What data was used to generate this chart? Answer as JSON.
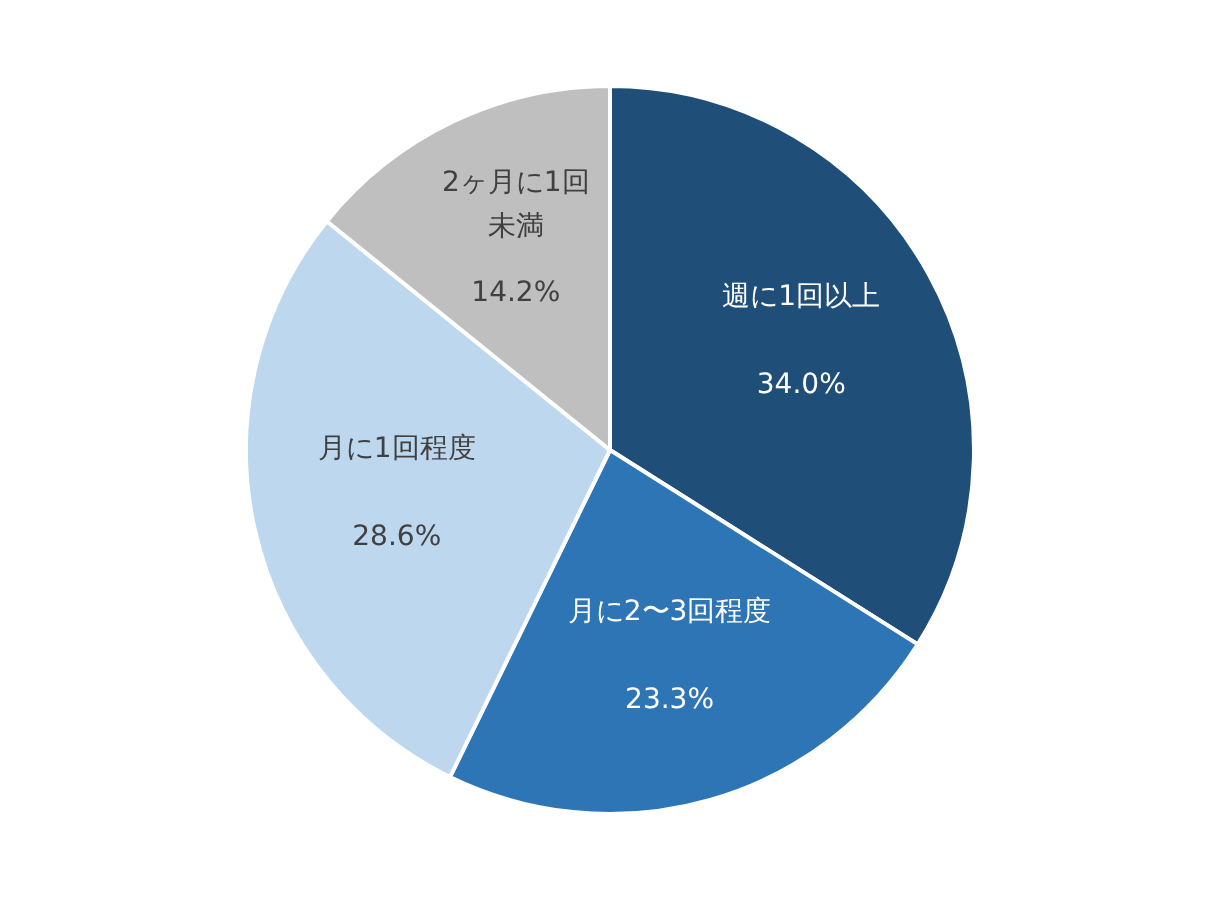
{
  "chart_data": {
    "type": "pie",
    "categories": [
      "週に1回以上",
      "月に2〜3回程度",
      "月に1回程度",
      "2ヶ月に1回未満"
    ],
    "values": [
      34.0,
      23.3,
      28.6,
      14.2
    ],
    "value_labels": [
      "34.0%",
      "23.3%",
      "28.6%",
      "14.2%"
    ],
    "colors": [
      "#1f4e79",
      "#2e75b6",
      "#bdd7ee",
      "#bfbfbf"
    ]
  }
}
